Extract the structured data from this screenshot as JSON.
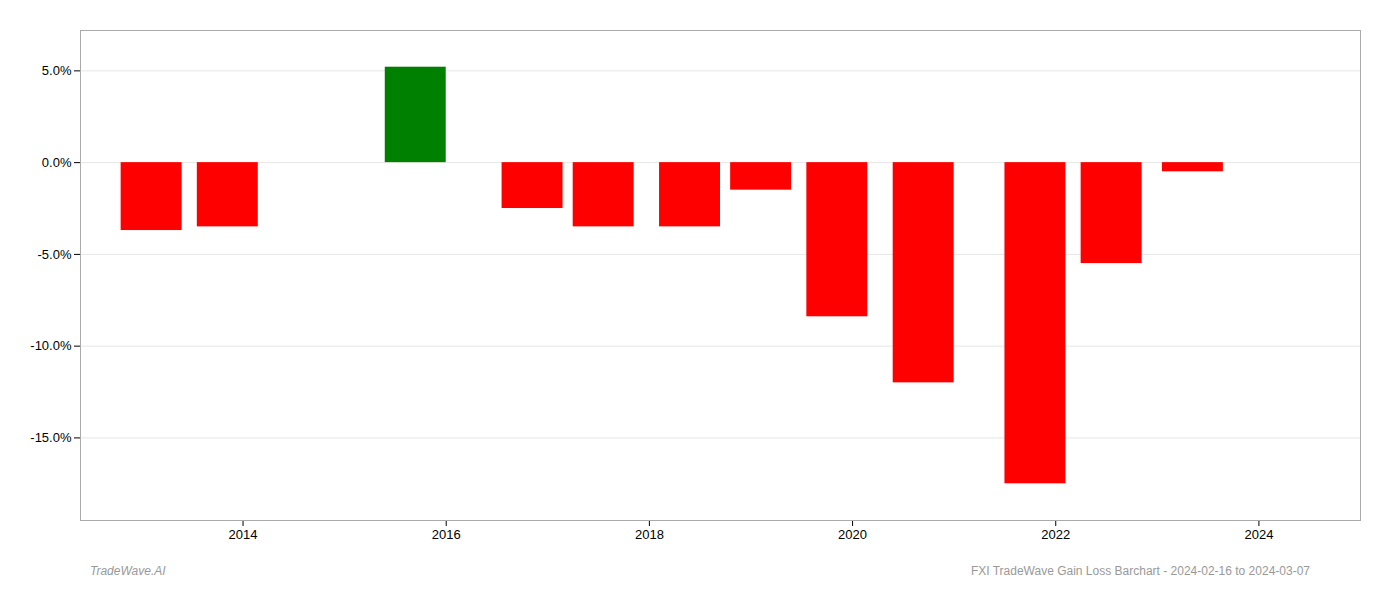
{
  "chart_data": {
    "type": "bar",
    "x": [
      2013.1,
      2013.85,
      2015.7,
      2016.85,
      2017.55,
      2018.4,
      2019.1,
      2019.85,
      2020.7,
      2021.8,
      2022.55,
      2023.35
    ],
    "values": [
      -3.7,
      -3.5,
      5.2,
      -2.5,
      -3.5,
      -3.5,
      -1.5,
      -8.4,
      -12.0,
      -17.5,
      -5.5,
      -0.5
    ],
    "colors": [
      "#ff0000",
      "#ff0000",
      "#008000",
      "#ff0000",
      "#ff0000",
      "#ff0000",
      "#ff0000",
      "#ff0000",
      "#ff0000",
      "#ff0000",
      "#ff0000",
      "#ff0000"
    ],
    "xlim": [
      2012.4,
      2025.0
    ],
    "ylim": [
      -19.5,
      7.2
    ],
    "xticks": [
      2014,
      2016,
      2018,
      2020,
      2022,
      2024
    ],
    "yticks": [
      {
        "value": 5.0,
        "label": "5.0%"
      },
      {
        "value": 0.0,
        "label": "0.0%"
      },
      {
        "value": -5.0,
        "label": "-5.0%"
      },
      {
        "value": -10.0,
        "label": "-10.0%"
      },
      {
        "value": -15.0,
        "label": "-15.0%"
      }
    ],
    "grid": true,
    "annotations": [
      "TradeWave.AI",
      "FXI TradeWave Gain Loss Barchart - 2024-02-16 to 2024-03-07"
    ]
  }
}
